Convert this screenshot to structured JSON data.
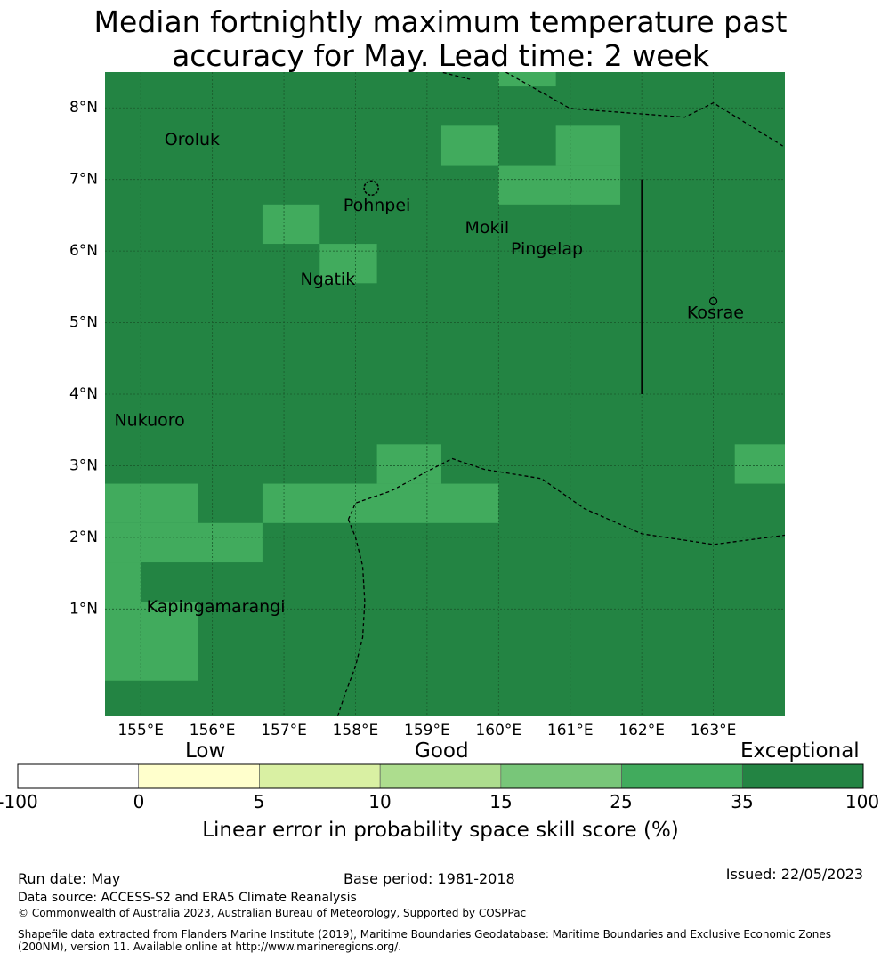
{
  "title": {
    "line1": "Median fortnightly maximum temperature past",
    "line2": "accuracy for May. Lead time: 2 week"
  },
  "map": {
    "lon_range": [
      154.5,
      164.0
    ],
    "lat_range": [
      -0.5,
      8.5
    ],
    "lon_ticks": [
      155,
      156,
      157,
      158,
      159,
      160,
      161,
      162,
      163
    ],
    "lat_ticks": [
      1,
      2,
      3,
      4,
      5,
      6,
      7,
      8
    ],
    "lon_tick_labels": [
      "155°E",
      "156°E",
      "157°E",
      "158°E",
      "159°E",
      "160°E",
      "161°E",
      "162°E",
      "163°E"
    ],
    "lat_tick_labels": [
      "1°N",
      "2°N",
      "3°N",
      "4°N",
      "5°N",
      "6°N",
      "7°N",
      "8°N"
    ],
    "background_color": "#238443",
    "grid": true,
    "cells_25_35": [
      {
        "lon": [
          160.0,
          160.8
        ],
        "lat": [
          8.3,
          8.5
        ]
      },
      {
        "lon": [
          159.2,
          160.0
        ],
        "lat": [
          7.2,
          7.75
        ]
      },
      {
        "lon": [
          160.8,
          161.7
        ],
        "lat": [
          7.2,
          7.75
        ]
      },
      {
        "lon": [
          160.0,
          161.7
        ],
        "lat": [
          6.65,
          7.2
        ]
      },
      {
        "lon": [
          156.7,
          157.5
        ],
        "lat": [
          6.1,
          6.65
        ]
      },
      {
        "lon": [
          157.5,
          158.3
        ],
        "lat": [
          5.55,
          6.1
        ]
      },
      {
        "lon": [
          158.3,
          159.2
        ],
        "lat": [
          2.75,
          3.3
        ]
      },
      {
        "lon": [
          163.3,
          164.0
        ],
        "lat": [
          2.75,
          3.3
        ]
      },
      {
        "lon": [
          154.5,
          155.8
        ],
        "lat": [
          2.2,
          2.75
        ]
      },
      {
        "lon": [
          156.7,
          160.0
        ],
        "lat": [
          2.2,
          2.75
        ]
      },
      {
        "lon": [
          154.5,
          156.7
        ],
        "lat": [
          1.65,
          2.2
        ]
      },
      {
        "lon": [
          154.5,
          155.0
        ],
        "lat": [
          0.0,
          1.65
        ]
      },
      {
        "lon": [
          155.0,
          155.8
        ],
        "lat": [
          0.0,
          1.1
        ]
      }
    ],
    "places": [
      {
        "name": "Oroluk",
        "lon": 155.33,
        "lat": 7.55
      },
      {
        "name": "Pohnpei",
        "lon": 157.83,
        "lat": 6.63
      },
      {
        "name": "Mokil",
        "lon": 159.53,
        "lat": 6.32
      },
      {
        "name": "Pingelap",
        "lon": 160.17,
        "lat": 6.02
      },
      {
        "name": "Ngatik",
        "lon": 157.23,
        "lat": 5.6
      },
      {
        "name": "Kosrae",
        "lon": 162.63,
        "lat": 5.13
      },
      {
        "name": "Nukuoro",
        "lon": 154.63,
        "lat": 3.63
      },
      {
        "name": "Kapingamarangi",
        "lon": 155.08,
        "lat": 1.02
      }
    ],
    "boundaries": [
      [
        [
          160.1,
          8.5
        ],
        [
          161.0,
          7.99
        ],
        [
          162.6,
          7.87
        ],
        [
          163.0,
          8.07
        ],
        [
          164.0,
          7.45
        ]
      ],
      [
        [
          158.8,
          8.6
        ],
        [
          159.6,
          8.4
        ]
      ],
      [
        [
          157.9,
          2.25
        ],
        [
          158.0,
          2.48
        ],
        [
          158.5,
          2.65
        ],
        [
          159.0,
          2.92
        ],
        [
          159.35,
          3.1
        ],
        [
          159.8,
          2.95
        ],
        [
          160.6,
          2.82
        ],
        [
          161.2,
          2.4
        ],
        [
          162.0,
          2.05
        ],
        [
          163.0,
          1.9
        ],
        [
          164.0,
          2.03
        ]
      ],
      [
        [
          157.9,
          2.25
        ],
        [
          158.0,
          2.0
        ],
        [
          158.1,
          1.6
        ],
        [
          158.13,
          1.1
        ],
        [
          158.1,
          0.6
        ],
        [
          158.0,
          0.2
        ],
        [
          157.85,
          -0.2
        ],
        [
          157.75,
          -0.5
        ]
      ]
    ],
    "solid_line": [
      [
        162.0,
        7.0
      ],
      [
        162.0,
        4.0
      ]
    ]
  },
  "colorbar": {
    "category_labels": [
      "Low",
      "Good",
      "Exceptional"
    ],
    "ticks": [
      "-100",
      "0",
      "5",
      "10",
      "15",
      "25",
      "35",
      "100"
    ],
    "colors": [
      "#ffffff",
      "#ffffcc",
      "#d9f0a3",
      "#addd8e",
      "#78c679",
      "#41ab5d",
      "#238443"
    ],
    "label": "Linear error in probability space skill score (%)"
  },
  "footer": {
    "run_date": "Run date: May",
    "base_period": "Base period: 1981-2018",
    "issued": "Issued: 22/05/2023",
    "data_source": "Data source: ACCESS-S2 and ERA5 Climate Reanalysis",
    "copyright": "© Commonwealth of Australia 2023, Australian Bureau of Meteorology, Supported by COSPPac",
    "shapefile_line1": "Shapefile data extracted from Flanders Marine Institute (2019), Maritime Boundaries Geodatabase: Maritime Boundaries and Exclusive Economic Zones",
    "shapefile_line2": "(200NM), version 11. Available online at http://www.marineregions.org/."
  }
}
